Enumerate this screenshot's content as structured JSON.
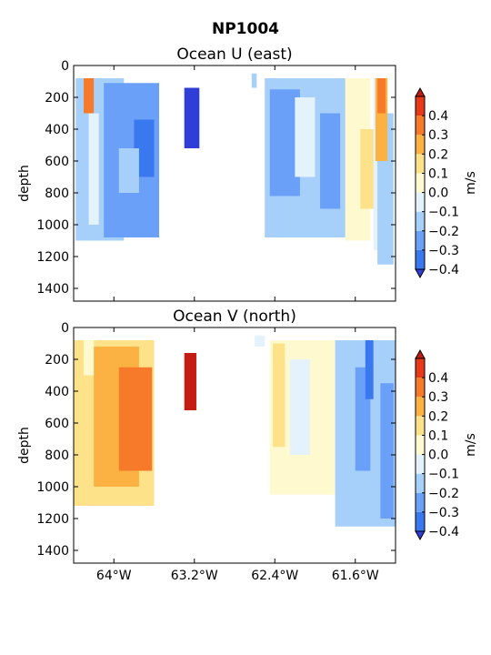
{
  "figure": {
    "title": "NP1004"
  },
  "colorbar": {
    "levels": [
      -0.4,
      -0.3,
      -0.2,
      -0.1,
      0.0,
      0.1,
      0.2,
      0.3,
      0.4
    ],
    "tick_labels": [
      "−0.4",
      "−0.3",
      "−0.2",
      "−0.1",
      "0.0",
      "0.1",
      "0.2",
      "0.3",
      "0.4"
    ],
    "colors": [
      "#2f3ed6",
      "#3a78f0",
      "#6aa0f8",
      "#a6d0fa",
      "#e3f2fb",
      "#fff9cf",
      "#fde28a",
      "#fbb243",
      "#f7792a",
      "#e83a1a",
      "#c31c12"
    ],
    "label": "m/s"
  },
  "chart_data": [
    {
      "type": "heatmap",
      "title": "Ocean U (east)",
      "ylabel": "depth",
      "xlabel": "",
      "xlim": [
        -64.4,
        -61.2
      ],
      "ylim": [
        1480,
        0
      ],
      "x_ticks": [
        -64.0,
        -63.2,
        -62.4,
        -61.6
      ],
      "x_tick_labels": [
        "64°W",
        "63.2°W",
        "62.4°W",
        "61.6°W"
      ],
      "y_ticks": [
        0,
        200,
        400,
        600,
        800,
        1000,
        1200,
        1400
      ],
      "y_tick_labels": [
        "0",
        "200",
        "400",
        "600",
        "800",
        "1000",
        "1200",
        "1400"
      ],
      "regions": [
        {
          "lon": [
            -64.38,
            -63.9
          ],
          "depth": [
            80,
            1100
          ],
          "value": -0.15
        },
        {
          "lon": [
            -64.3,
            -64.2
          ],
          "depth": [
            80,
            300
          ],
          "value": 0.35
        },
        {
          "lon": [
            -64.25,
            -64.15
          ],
          "depth": [
            300,
            1000
          ],
          "value": -0.05
        },
        {
          "lon": [
            -64.1,
            -63.55
          ],
          "depth": [
            110,
            1080
          ],
          "value": -0.25
        },
        {
          "lon": [
            -63.8,
            -63.6
          ],
          "depth": [
            340,
            700
          ],
          "value": -0.32
        },
        {
          "lon": [
            -63.95,
            -63.75
          ],
          "depth": [
            520,
            800
          ],
          "value": -0.15
        },
        {
          "lon": [
            -63.3,
            -63.15
          ],
          "depth": [
            140,
            520
          ],
          "value": -0.42
        },
        {
          "lon": [
            -62.63,
            -62.58
          ],
          "depth": [
            50,
            140
          ],
          "value": -0.15
        },
        {
          "lon": [
            -62.5,
            -61.6
          ],
          "depth": [
            80,
            1080
          ],
          "value": -0.15
        },
        {
          "lon": [
            -62.45,
            -62.15
          ],
          "depth": [
            150,
            820
          ],
          "value": -0.25
        },
        {
          "lon": [
            -62.2,
            -62.0
          ],
          "depth": [
            200,
            700
          ],
          "value": -0.05
        },
        {
          "lon": [
            -61.95,
            -61.75
          ],
          "depth": [
            300,
            900
          ],
          "value": -0.25
        },
        {
          "lon": [
            -61.7,
            -61.45
          ],
          "depth": [
            80,
            1100
          ],
          "value": 0.05
        },
        {
          "lon": [
            -61.55,
            -61.38
          ],
          "depth": [
            400,
            900
          ],
          "value": 0.15
        },
        {
          "lon": [
            -61.42,
            -61.28
          ],
          "depth": [
            80,
            1160
          ],
          "value": -0.05
        },
        {
          "lon": [
            -61.38,
            -61.22
          ],
          "depth": [
            300,
            1250
          ],
          "value": -0.15
        },
        {
          "lon": [
            -61.4,
            -61.28
          ],
          "depth": [
            80,
            600
          ],
          "value": 0.25
        },
        {
          "lon": [
            -61.38,
            -61.3
          ],
          "depth": [
            80,
            300
          ],
          "value": 0.35
        }
      ]
    },
    {
      "type": "heatmap",
      "title": "Ocean V (north)",
      "ylabel": "depth",
      "xlabel": "",
      "xlim": [
        -64.4,
        -61.2
      ],
      "ylim": [
        1480,
        0
      ],
      "x_ticks": [
        -64.0,
        -63.2,
        -62.4,
        -61.6
      ],
      "x_tick_labels": [
        "64°W",
        "63.2°W",
        "62.4°W",
        "61.6°W"
      ],
      "y_ticks": [
        0,
        200,
        400,
        600,
        800,
        1000,
        1200,
        1400
      ],
      "y_tick_labels": [
        "0",
        "200",
        "400",
        "600",
        "800",
        "1000",
        "1200",
        "1400"
      ],
      "regions": [
        {
          "lon": [
            -64.4,
            -63.6
          ],
          "depth": [
            80,
            1120
          ],
          "value": 0.15
        },
        {
          "lon": [
            -64.2,
            -63.75
          ],
          "depth": [
            120,
            1000
          ],
          "value": 0.25
        },
        {
          "lon": [
            -63.95,
            -63.62
          ],
          "depth": [
            250,
            900
          ],
          "value": 0.32
        },
        {
          "lon": [
            -63.78,
            -63.7
          ],
          "depth": [
            580,
            700
          ],
          "value": 0.38
        },
        {
          "lon": [
            -64.3,
            -64.2
          ],
          "depth": [
            80,
            300
          ],
          "value": 0.05
        },
        {
          "lon": [
            -63.3,
            -63.18
          ],
          "depth": [
            160,
            520
          ],
          "value": 0.42
        },
        {
          "lon": [
            -62.6,
            -62.5
          ],
          "depth": [
            50,
            120
          ],
          "value": -0.05
        },
        {
          "lon": [
            -62.45,
            -61.8
          ],
          "depth": [
            80,
            1050
          ],
          "value": 0.05
        },
        {
          "lon": [
            -62.42,
            -62.3
          ],
          "depth": [
            100,
            750
          ],
          "value": 0.15
        },
        {
          "lon": [
            -62.25,
            -62.05
          ],
          "depth": [
            200,
            800
          ],
          "value": -0.05
        },
        {
          "lon": [
            -61.8,
            -61.2
          ],
          "depth": [
            80,
            1250
          ],
          "value": -0.15
        },
        {
          "lon": [
            -61.6,
            -61.45
          ],
          "depth": [
            250,
            900
          ],
          "value": -0.25
        },
        {
          "lon": [
            -61.5,
            -61.42
          ],
          "depth": [
            80,
            450
          ],
          "value": -0.32
        },
        {
          "lon": [
            -61.35,
            -61.22
          ],
          "depth": [
            350,
            1200
          ],
          "value": -0.25
        }
      ]
    }
  ]
}
